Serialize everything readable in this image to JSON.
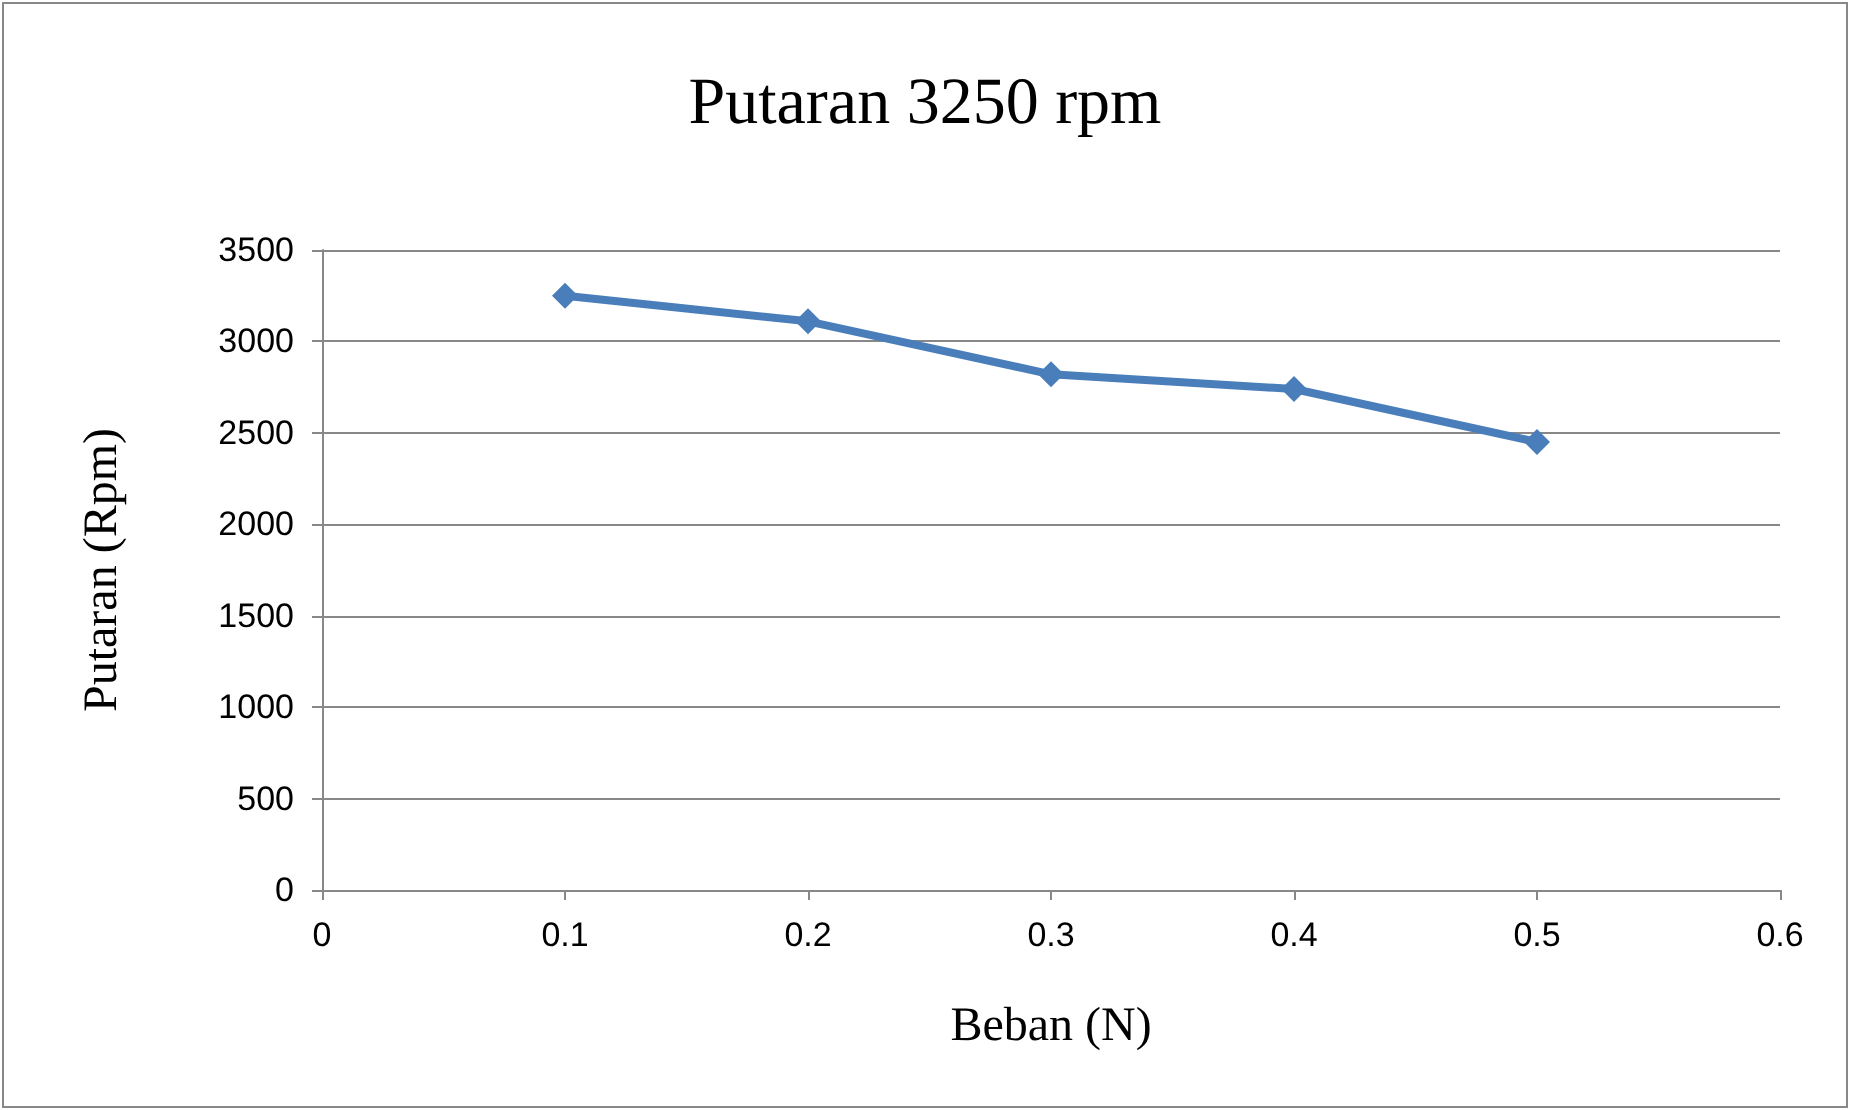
{
  "chart_data": {
    "type": "line",
    "title": "Putaran 3250 rpm",
    "xlabel": "Beban (N)",
    "ylabel": "Putaran (Rpm)",
    "x": [
      0.1,
      0.2,
      0.3,
      0.4,
      0.5
    ],
    "series": [
      {
        "color": "#4a7ebb",
        "values": [
          3250,
          3110,
          2820,
          2740,
          2450
        ]
      }
    ],
    "xlim": [
      0,
      0.6
    ],
    "xticks": [
      0,
      0.1,
      0.2,
      0.3,
      0.4,
      0.5,
      0.6
    ],
    "ylim": [
      0,
      3500
    ],
    "yticks": [
      0,
      500,
      1000,
      1500,
      2000,
      2500,
      3000,
      3500
    ],
    "grid": "y",
    "marker": "diamond",
    "line_style": "solid"
  }
}
